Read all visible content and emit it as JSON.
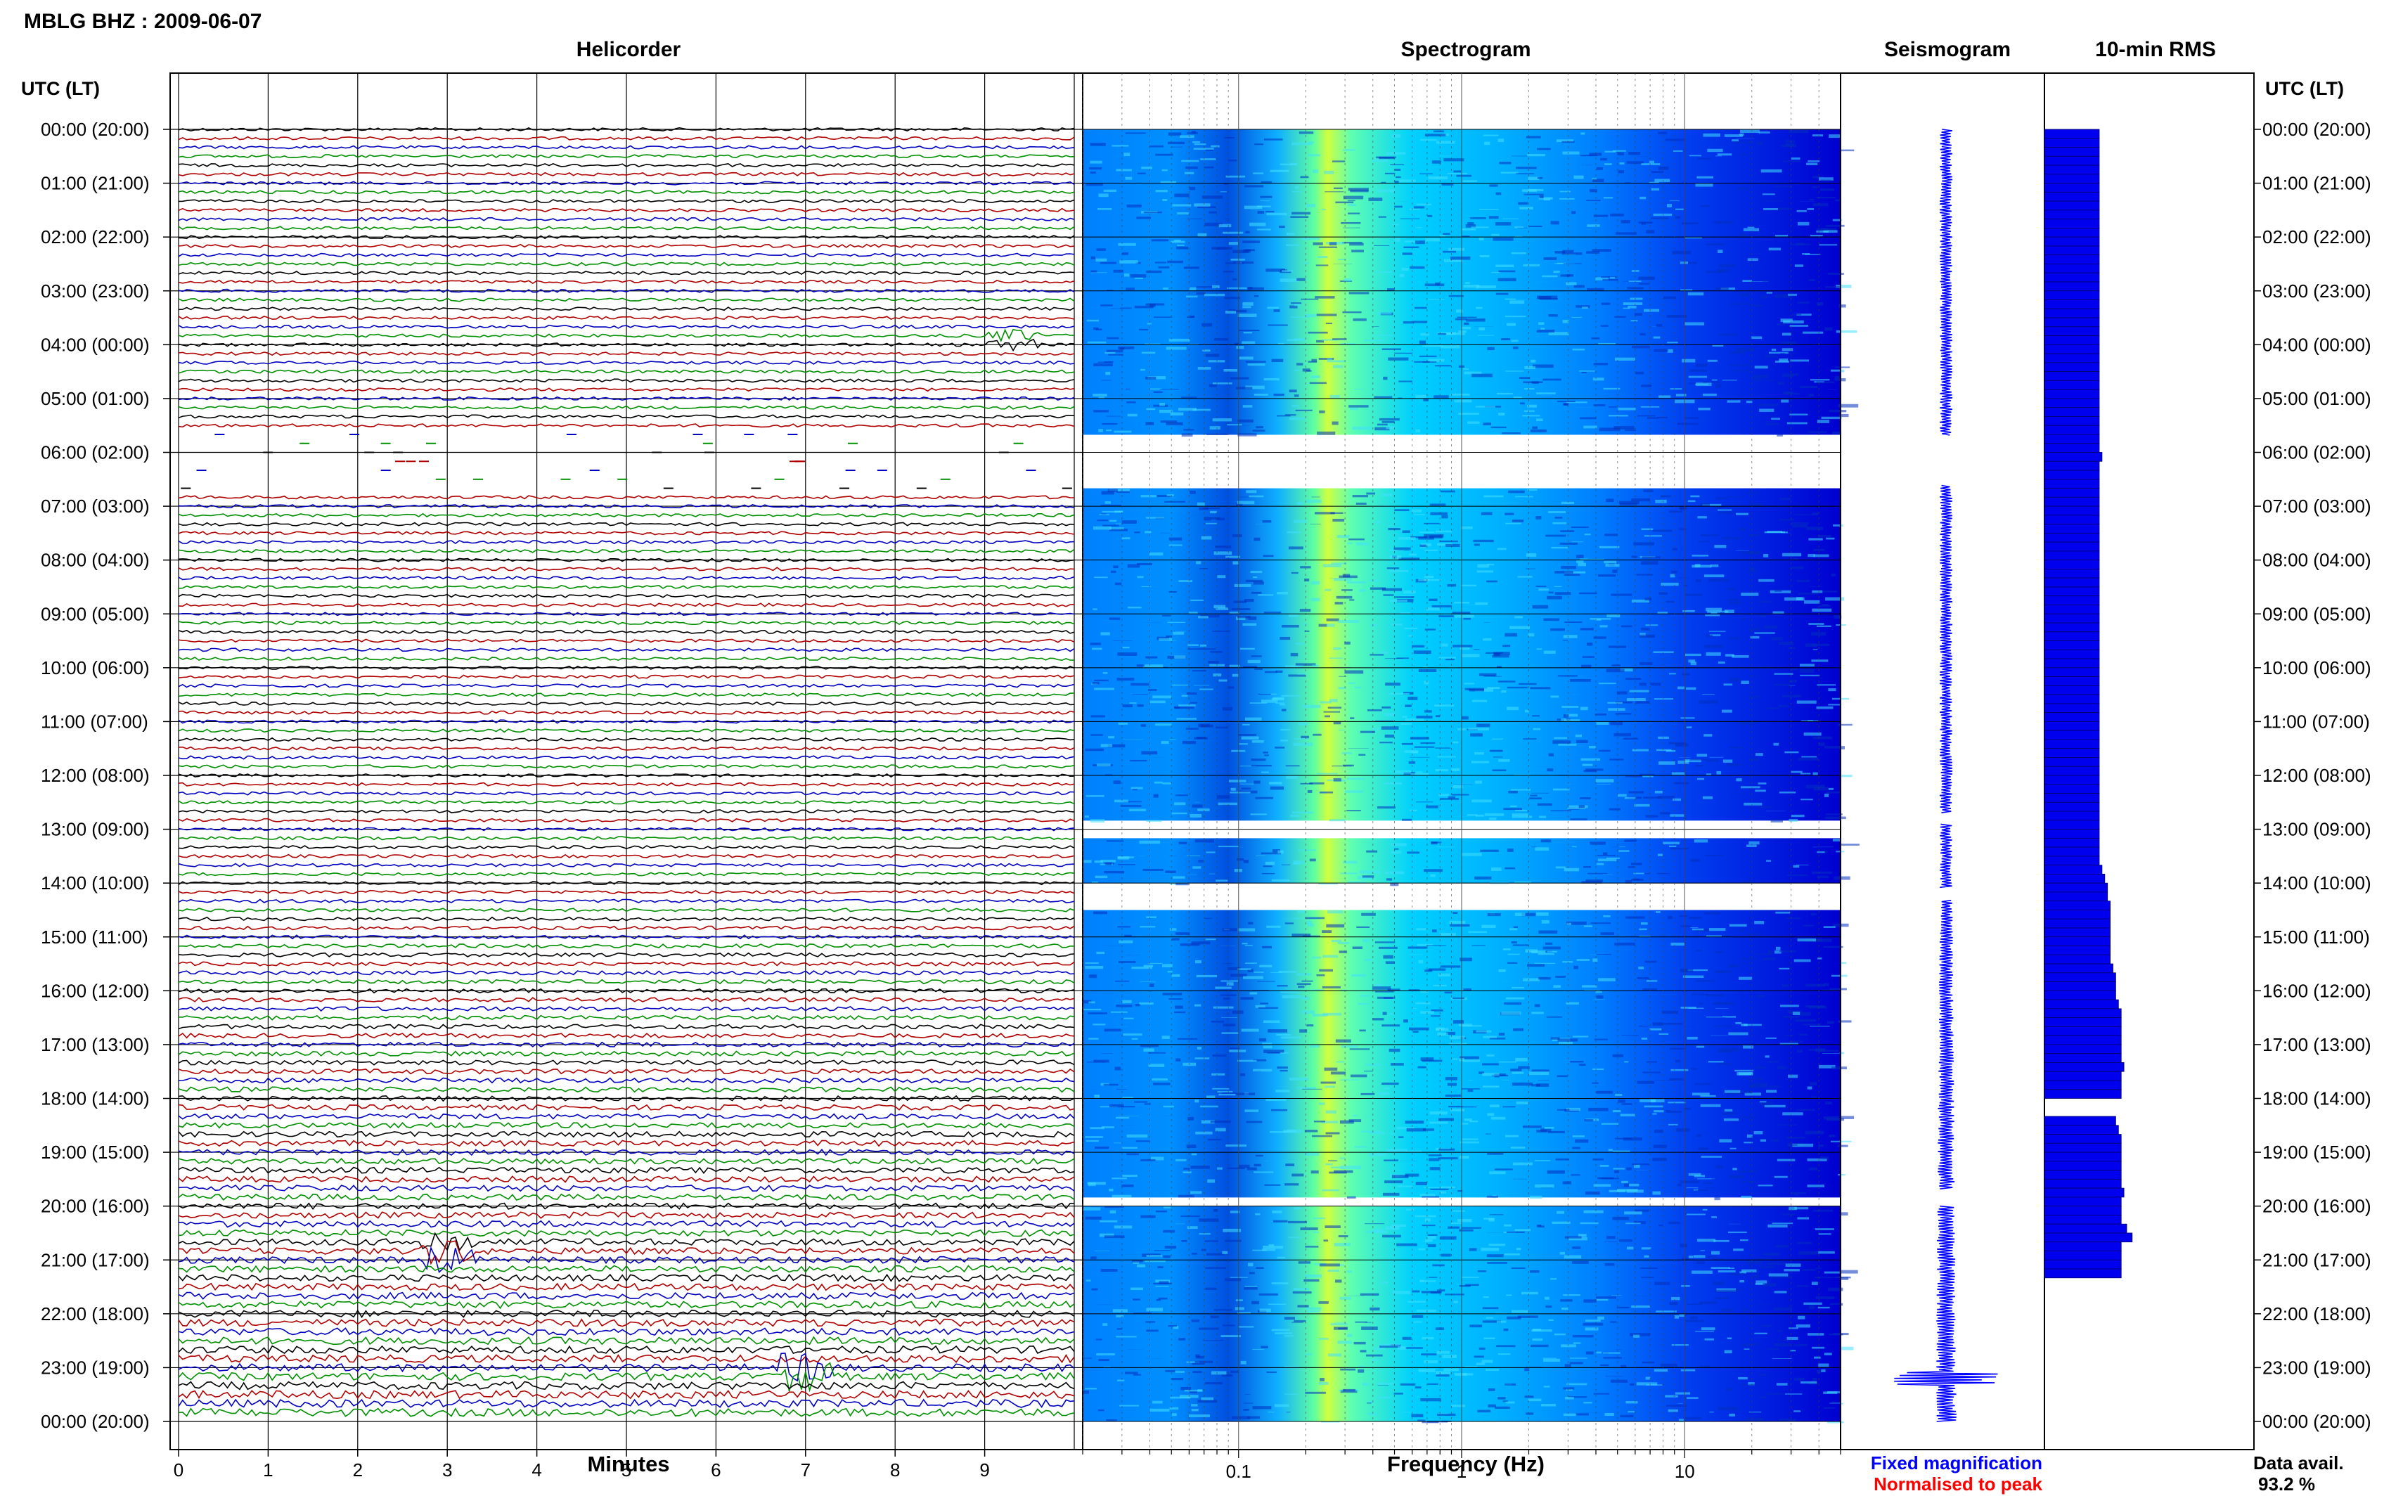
{
  "header": {
    "title": "MBLG BHZ : 2009-06-07",
    "utc_label_left": "UTC (LT)",
    "utc_label_right": "UTC (LT)"
  },
  "panels": {
    "helicorder": "Helicorder",
    "spectrogram": "Spectrogram",
    "seismogram": "Seismogram",
    "rms": "10-min RMS"
  },
  "footer": {
    "fixed_magnification": "Fixed magnification",
    "normalised_to_peak": "Normalised to peak",
    "data_avail_label": "Data avail.",
    "data_avail_value": "93.2 %"
  },
  "colors": {
    "trace_cycle": [
      "#000000",
      "#b00000",
      "#0000c0",
      "#009000"
    ],
    "fixed_magnification": "#0000ff",
    "normalised_to_peak": "#ff0000",
    "rms_fill": "#0000ee",
    "seismogram": "#0000ff"
  },
  "chart_data": [
    {
      "type": "line",
      "name": "helicorder",
      "xlabel": "Minutes",
      "x_ticks": [
        "0",
        "1",
        "2",
        "3",
        "4",
        "5",
        "6",
        "7",
        "8",
        "9"
      ],
      "xlim": [
        0,
        10
      ],
      "time_labels": [
        "00:00 (20:00)",
        "01:00 (21:00)",
        "02:00 (22:00)",
        "03:00 (23:00)",
        "04:00 (00:00)",
        "05:00 (01:00)",
        "06:00 (02:00)",
        "07:00 (03:00)",
        "08:00 (04:00)",
        "09:00 (05:00)",
        "10:00 (06:00)",
        "11:00 (07:00)",
        "12:00 (08:00)",
        "13:00 (09:00)",
        "14:00 (10:00)",
        "15:00 (11:00)",
        "16:00 (12:00)",
        "17:00 (13:00)",
        "18:00 (14:00)",
        "19:00 (15:00)",
        "20:00 (16:00)",
        "21:00 (17:00)",
        "22:00 (18:00)",
        "23:00 (19:00)",
        "00:00 (20:00)"
      ],
      "lines_per_hour": 6,
      "gap_hours": [
        [
          5.6,
          6.7
        ]
      ],
      "events": [
        {
          "hour": 3.9,
          "minute": 9.3
        },
        {
          "hour": 20.8,
          "minute": 3.0
        },
        {
          "hour": 23.1,
          "minute": 7.0
        }
      ]
    },
    {
      "type": "heatmap",
      "name": "spectrogram",
      "xlabel": "Frequency (Hz)",
      "x_scale": "log",
      "xlim": [
        0.02,
        50
      ],
      "x_ticks": [
        "0.1",
        "1",
        "10"
      ],
      "colormap": [
        "#000080",
        "#0000ff",
        "#0080ff",
        "#00c0ff",
        "#40ffc0",
        "#c0ff40"
      ],
      "peak_frequency_hz": 0.25,
      "gap_hours": [
        [
          5.6,
          6.6
        ],
        [
          12.7,
          13.1
        ],
        [
          14.0,
          14.4
        ],
        [
          19.7,
          20.0
        ]
      ]
    },
    {
      "type": "line",
      "name": "seismogram",
      "gap_hours": [
        [
          5.7,
          6.6
        ],
        [
          12.7,
          12.9
        ],
        [
          14.1,
          14.3
        ],
        [
          19.7,
          20.0
        ]
      ],
      "spike_hours": [
        23.2
      ]
    },
    {
      "type": "bar",
      "name": "rms",
      "orientation": "horizontal",
      "values": [
        1.0,
        1.0,
        1.0,
        1.0,
        1.0,
        1.0,
        1.0,
        1.0,
        1.0,
        1.0,
        1.0,
        1.0,
        1.0,
        1.0,
        1.0,
        1.0,
        1.0,
        1.0,
        1.0,
        1.0,
        1.0,
        1.0,
        1.0,
        1.0,
        1.0,
        1.0,
        1.0,
        1.0,
        1.0,
        1.0,
        1.0,
        1.0,
        1.0,
        1.0,
        1.0,
        1.0,
        1.05,
        1.0,
        1.0,
        1.0,
        1.0,
        1.0,
        1.0,
        1.0,
        1.0,
        1.0,
        1.0,
        1.0,
        1.0,
        1.0,
        1.0,
        1.0,
        1.0,
        1.0,
        1.0,
        1.0,
        1.0,
        1.0,
        1.0,
        1.0,
        1.0,
        1.0,
        1.0,
        1.0,
        1.0,
        1.0,
        1.0,
        1.0,
        1.0,
        1.0,
        1.0,
        1.0,
        1.0,
        1.0,
        1.0,
        1.0,
        1.0,
        1.0,
        1.0,
        1.0,
        1.0,
        1.0,
        1.05,
        1.1,
        1.15,
        1.15,
        1.2,
        1.2,
        1.2,
        1.2,
        1.2,
        1.2,
        1.2,
        1.25,
        1.3,
        1.3,
        1.3,
        1.35,
        1.4,
        1.4,
        1.4,
        1.4,
        1.4,
        1.4,
        1.45,
        1.4,
        1.4,
        1.4,
        0,
        0,
        1.3,
        1.35,
        1.4,
        1.4,
        1.4,
        1.4,
        1.4,
        1.4,
        1.45,
        1.4,
        1.4,
        1.4,
        1.5,
        1.6,
        1.4,
        1.4,
        1.4,
        1.4
      ]
    }
  ]
}
